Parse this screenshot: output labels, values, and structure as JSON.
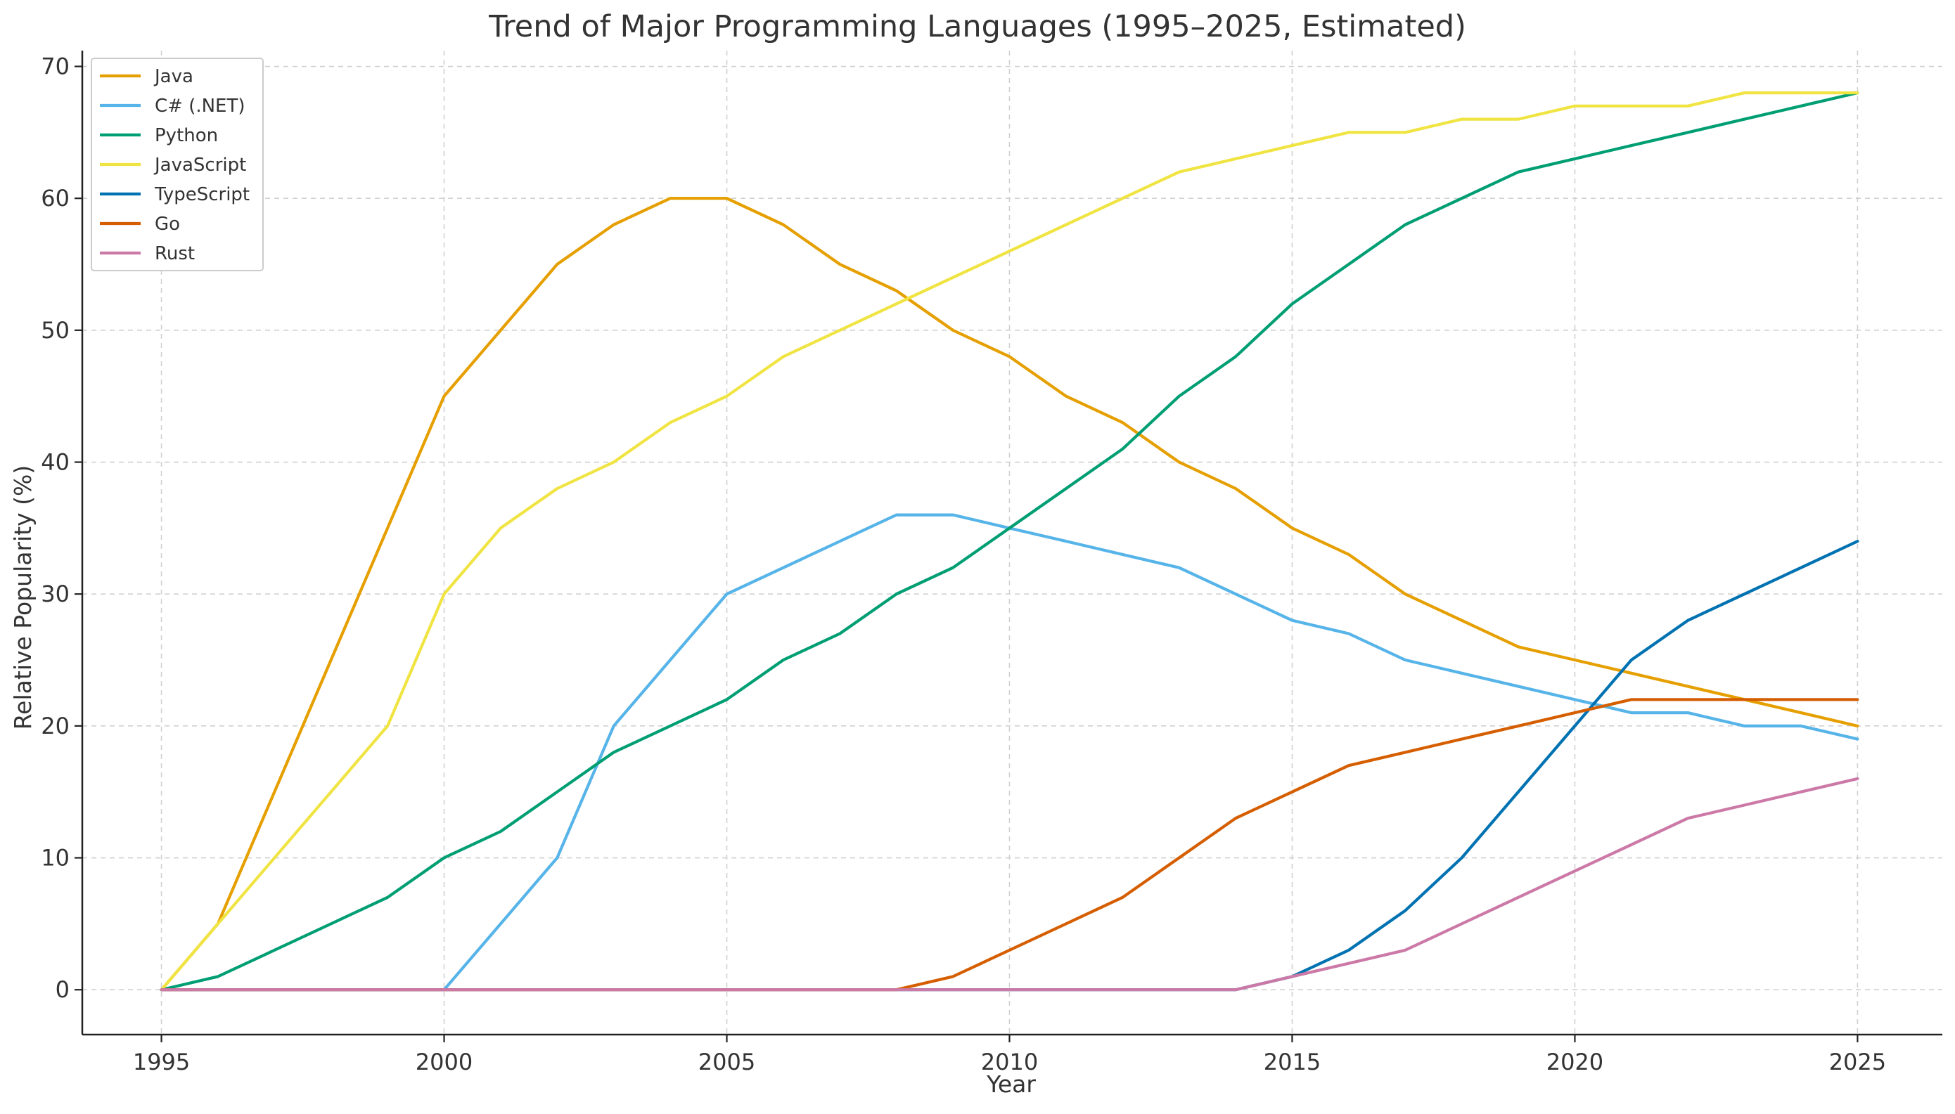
{
  "chart_data": {
    "type": "line",
    "title": "Trend of Major Programming Languages (1995–2025, Estimated)",
    "xlabel": "Year",
    "ylabel": "Relative Popularity (%)",
    "xlim": [
      1993.6,
      2026.5
    ],
    "ylim": [
      -3.4,
      71.2
    ],
    "x_ticks": [
      1995,
      2000,
      2005,
      2010,
      2015,
      2020,
      2025
    ],
    "y_ticks": [
      0,
      10,
      20,
      30,
      40,
      50,
      60,
      70
    ],
    "grid": true,
    "legend_position": "top-left",
    "x": [
      1995,
      1996,
      1997,
      1998,
      1999,
      2000,
      2001,
      2002,
      2003,
      2004,
      2005,
      2006,
      2007,
      2008,
      2009,
      2010,
      2011,
      2012,
      2013,
      2014,
      2015,
      2016,
      2017,
      2018,
      2019,
      2020,
      2021,
      2022,
      2023,
      2024,
      2025
    ],
    "series": [
      {
        "name": "Java",
        "color": "#E69F00",
        "values": [
          0,
          5,
          15,
          25,
          35,
          45,
          50,
          55,
          58,
          60,
          60,
          58,
          55,
          53,
          50,
          48,
          45,
          43,
          40,
          38,
          35,
          33,
          30,
          28,
          26,
          25,
          24,
          23,
          22,
          21,
          20
        ]
      },
      {
        "name": "C# (.NET)",
        "color": "#56B4E9",
        "values": [
          0,
          0,
          0,
          0,
          0,
          0,
          5,
          10,
          20,
          25,
          30,
          32,
          34,
          36,
          36,
          35,
          34,
          33,
          32,
          30,
          28,
          27,
          25,
          24,
          23,
          22,
          21,
          21,
          20,
          20,
          19
        ]
      },
      {
        "name": "Python",
        "color": "#009E73",
        "values": [
          0,
          1,
          3,
          5,
          7,
          10,
          12,
          15,
          18,
          20,
          22,
          25,
          27,
          30,
          32,
          35,
          38,
          41,
          45,
          48,
          52,
          55,
          58,
          60,
          62,
          63,
          64,
          65,
          66,
          67,
          68
        ]
      },
      {
        "name": "JavaScript",
        "color": "#F0E442",
        "values": [
          0,
          5,
          10,
          15,
          20,
          30,
          35,
          38,
          40,
          43,
          45,
          48,
          50,
          52,
          54,
          56,
          58,
          60,
          62,
          63,
          64,
          65,
          65,
          66,
          66,
          67,
          67,
          67,
          68,
          68,
          68
        ]
      },
      {
        "name": "TypeScript",
        "color": "#0072B2",
        "values": [
          0,
          0,
          0,
          0,
          0,
          0,
          0,
          0,
          0,
          0,
          0,
          0,
          0,
          0,
          0,
          0,
          0,
          0,
          0,
          0,
          1,
          3,
          6,
          10,
          15,
          20,
          25,
          28,
          30,
          32,
          34
        ]
      },
      {
        "name": "Go",
        "color": "#D55E00",
        "values": [
          0,
          0,
          0,
          0,
          0,
          0,
          0,
          0,
          0,
          0,
          0,
          0,
          0,
          0,
          1,
          3,
          5,
          7,
          10,
          13,
          15,
          17,
          18,
          19,
          20,
          21,
          22,
          22,
          22,
          22,
          22
        ]
      },
      {
        "name": "Rust",
        "color": "#CC79A7",
        "values": [
          0,
          0,
          0,
          0,
          0,
          0,
          0,
          0,
          0,
          0,
          0,
          0,
          0,
          0,
          0,
          0,
          0,
          0,
          0,
          0,
          1,
          2,
          3,
          5,
          7,
          9,
          11,
          13,
          14,
          15,
          16
        ]
      }
    ]
  }
}
